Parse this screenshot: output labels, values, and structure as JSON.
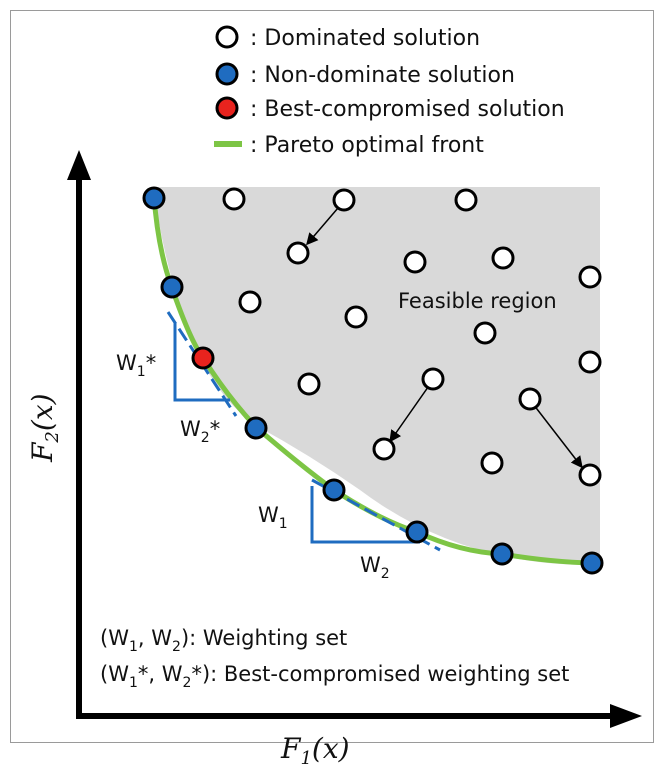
{
  "legend": {
    "dominated": "Dominated solution",
    "non_dominated": "Non-dominate solution",
    "best": "Best-compromised solution",
    "front": "Pareto optimal front",
    "separator": ":"
  },
  "region_label": "Feasible region",
  "axes": {
    "x_main": "F",
    "x_sub": "1",
    "x_arg": "(x)",
    "y_main": "F",
    "y_sub": "2",
    "y_arg": "(x)"
  },
  "weights": {
    "w1_main": "W",
    "w1_sub": "1",
    "w2_main": "W",
    "w2_sub": "2",
    "w1s_main": "W",
    "w1s_sub": "1",
    "w1s_star": "*",
    "w2s_main": "W",
    "w2s_sub": "2",
    "w2s_star": "*"
  },
  "notes": {
    "line1": "(W1, W2): Weighting set",
    "line1_parts": {
      "open": "(W",
      "s1": "1",
      "mid": ", W",
      "s2": "2",
      "close": "): Weighting set"
    },
    "line2": "(W1*, W2*): Best-compromised weighting set",
    "line2_parts": {
      "open": "(W",
      "s1": "1",
      "mid": "*, W",
      "s2": "2",
      "close": "*): Best-compromised weighting set"
    }
  },
  "colors": {
    "front": "#7dc545",
    "region": "#d9d9d9",
    "non_dominated": "#1f6cc0",
    "best": "#e8231e",
    "weight_lines": "#1f6cc0",
    "axes": "#000000"
  }
}
